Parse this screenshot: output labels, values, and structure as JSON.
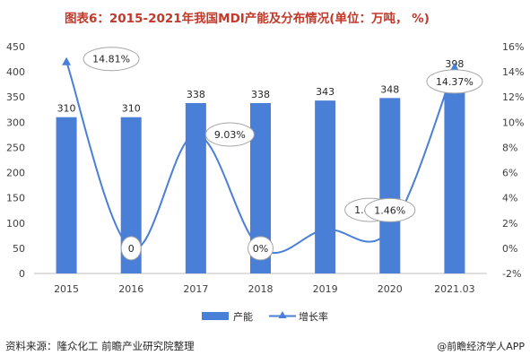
{
  "header": {
    "title": "图表6：2015-2021年我国MDI产能及分布情况(单位：万吨， %)"
  },
  "footer": {
    "source": "资料来源：隆众化工 前瞻产业研究院整理",
    "logo_text": "@前瞻经济学人APP"
  },
  "colors": {
    "bar": "#4a7fd7",
    "line": "#4a7fd7",
    "title": "#c0392b"
  },
  "chart_data": {
    "type": "bar",
    "title": "图表6：2015-2021年我国MDI产能及分布情况(单位：万吨， %)",
    "categories": [
      "2015",
      "2016",
      "2017",
      "2018",
      "2019",
      "2020",
      "2021.03"
    ],
    "series": [
      {
        "name": "产能",
        "type": "bar",
        "axis": "left",
        "values": [
          310,
          310,
          338,
          338,
          343,
          348,
          398
        ],
        "labels": [
          "310",
          "310",
          "338",
          "338",
          "343",
          "348",
          "398"
        ]
      },
      {
        "name": "增长率",
        "type": "line",
        "axis": "right",
        "values": [
          14.81,
          0,
          9.03,
          0,
          1.48,
          1.46,
          14.37
        ],
        "labels": [
          "14.81%",
          "0",
          "9.03%",
          "0%",
          "1.48%",
          "1.46%",
          "14.37%"
        ]
      }
    ],
    "y_left": {
      "min": 0,
      "max": 450,
      "ticks": [
        "0",
        "50",
        "100",
        "150",
        "200",
        "250",
        "300",
        "350",
        "400",
        "450"
      ]
    },
    "y_right": {
      "min": -2,
      "max": 16,
      "ticks": [
        "-2%",
        "0%",
        "2%",
        "4%",
        "6%",
        "8%",
        "10%",
        "12%",
        "14%",
        "16%"
      ]
    },
    "legend": {
      "position": "bottom",
      "items": [
        "产能",
        "增长率"
      ]
    },
    "grid": false
  }
}
